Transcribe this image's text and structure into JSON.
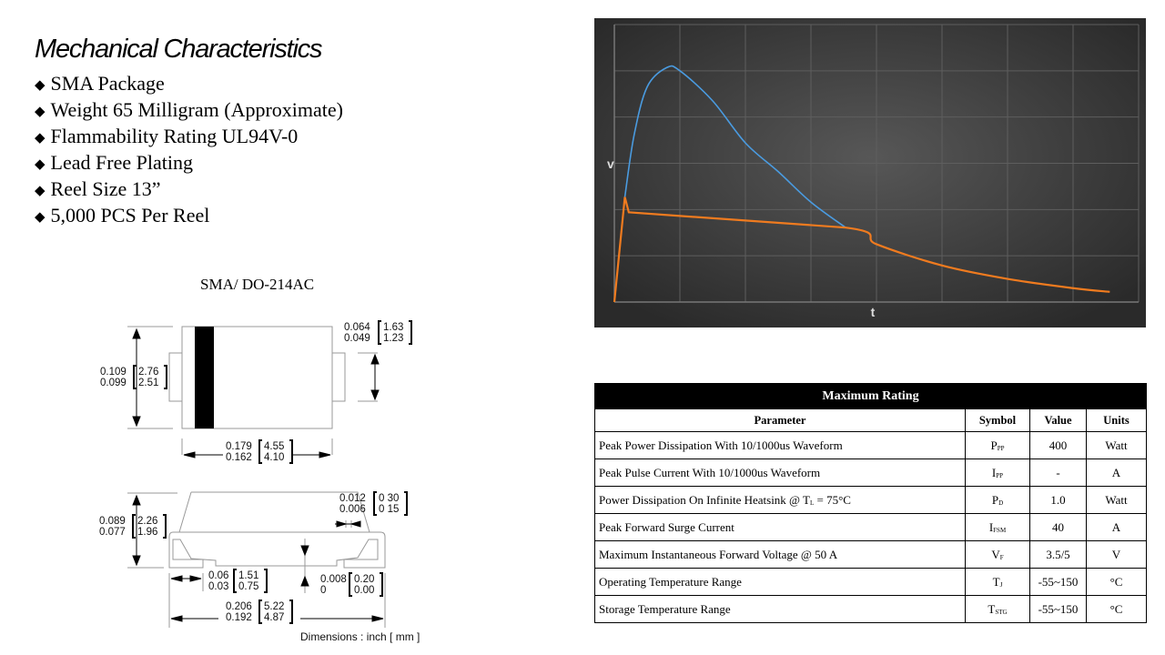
{
  "mechanical": {
    "title": "Mechanical Characteristics",
    "bullet_icon": "diamond-bullet-icon",
    "bullets": [
      "SMA Package",
      "Weight 65 Milligram (Approximate)",
      "Flammability Rating UL94V-0",
      "Lead Free Plating",
      "Reel Size 13”",
      "5,000 PCS Per Reel"
    ]
  },
  "package": {
    "label": "SMA/ DO-214AC",
    "dims": {
      "lead_w_in": "0.064\n0.049",
      "lead_w_mm": "1.63\n1.23",
      "body_h_in": "0.109\n0.099",
      "body_h_mm": "2.76\n2.51",
      "body_l_in": "0.179\n0.162",
      "body_l_mm": "4.55\n4.10",
      "lead_t_in": "0.012\n0.006",
      "lead_t_mm": "0 30\n0 15",
      "height_in": "0.089\n0.077",
      "height_mm": "2.26\n1.96",
      "foot_in": "0.06\n0.03",
      "foot_mm": "1.51\n0.75",
      "standoff_in": "0.008\n0",
      "standoff_mm": "0.20\n0.00",
      "total_in": "0.206\n0.192",
      "total_mm": "5.22\n4.87"
    },
    "note": "Dimensions : inch [ mm ]"
  },
  "chart_data": {
    "type": "line",
    "xlabel": "t",
    "ylabel": "v",
    "xlim": [
      0,
      8
    ],
    "ylim": [
      0,
      6
    ],
    "grid": true,
    "background": "#3a3a3a",
    "series": [
      {
        "color": "#4a9be0",
        "points": [
          [
            0.16,
            2.27
          ],
          [
            0.3,
            3.6
          ],
          [
            0.5,
            4.65
          ],
          [
            0.8,
            5.07
          ],
          [
            1,
            5.0
          ],
          [
            1.5,
            4.35
          ],
          [
            2,
            3.44
          ],
          [
            2.5,
            2.82
          ],
          [
            3,
            2.16
          ],
          [
            3.53,
            1.61
          ]
        ]
      },
      {
        "color": "#f07b1f",
        "points": [
          [
            0,
            0
          ],
          [
            0.16,
            2.27
          ],
          [
            0.22,
            1.94
          ],
          [
            3.53,
            1.61
          ],
          [
            4,
            1.25
          ],
          [
            5,
            0.79
          ],
          [
            6,
            0.5
          ],
          [
            7,
            0.3
          ],
          [
            7.56,
            0.22
          ]
        ]
      }
    ]
  },
  "table": {
    "title": "Maximum Rating",
    "headers": [
      "Parameter",
      "Symbol",
      "Value",
      "Units"
    ],
    "rows": [
      {
        "param": "Peak Power Dissipation With  10/1000us Waveform",
        "sym": "P",
        "sub": "PP",
        "value": "400",
        "unit": "Watt"
      },
      {
        "param": "Peak Pulse Current  With  10/1000us Waveform",
        "sym": "I",
        "sub": "PP",
        "value": "-",
        "unit": "A"
      },
      {
        "param": "Power Dissipation On Infinite Heatsink @ T",
        "param_sub": "L",
        "param_tail": " = 75°C",
        "sym": "P",
        "sub": "D",
        "value": "1.0",
        "unit": "Watt"
      },
      {
        "param": "Peak Forward Surge Current",
        "sym": "I",
        "sub": "FSM",
        "value": "40",
        "unit": "A"
      },
      {
        "param": "Maximum Instantaneous Forward Voltage @ 50 A",
        "sym": "V",
        "sub": "F",
        "value": "3.5/5",
        "unit": "V"
      },
      {
        "param": "Operating Temperature  Range",
        "sym": "T",
        "sub": "J",
        "value": "-55~150",
        "unit": "°C"
      },
      {
        "param": "Storage Temperature  Range",
        "sym": "T",
        "sub": "STG",
        "value": "-55~150",
        "unit": "°C"
      }
    ]
  }
}
